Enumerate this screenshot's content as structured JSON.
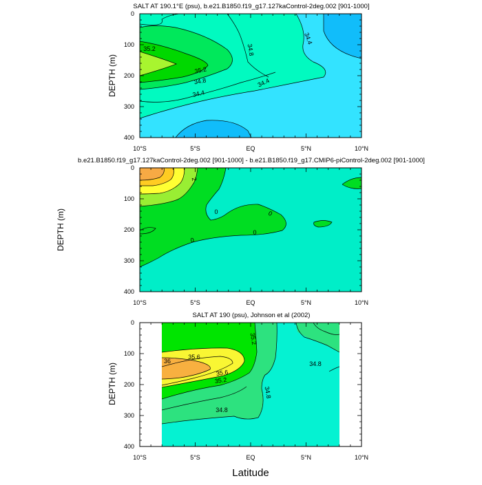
{
  "figure": {
    "xlabel": "Latitude"
  },
  "colors": {
    "c342": "#11bdfa",
    "c344": "#33e3ff",
    "c348": "#01fac0",
    "c352": "#00e85b",
    "c356": "#00d800",
    "c360": "#a8f52f",
    "d0": "#00eec8",
    "d02": "#00dd22",
    "d04": "#99ee33",
    "d06": "#ffff33",
    "d08": "#ffcc22",
    "d10": "#f7aa44",
    "j348": "#05f2d2",
    "j352": "#2de27f",
    "j356": "#00e500",
    "j360": "#f9f633",
    "j362": "#f8b040"
  },
  "chart_data": [
    {
      "type": "contour",
      "title": "SALT AT 190.1°E (psu), b.e21.B1850.f19_g17.127kaControl-2deg.002 [901-1000]",
      "xlabel": "",
      "ylabel": "DEPTH (m)",
      "xlim": [
        -10,
        10
      ],
      "ylim": [
        400,
        0
      ],
      "x_ticks": [
        "10°S",
        "5°S",
        "EQ",
        "5°N",
        "10°N"
      ],
      "y_ticks": [
        "0",
        "100",
        "200",
        "300",
        "400"
      ],
      "contour_labels": [
        "35.2",
        "35.2",
        "34.8",
        "34.8",
        "34.4",
        "34.4",
        "34.4"
      ],
      "levels": [
        34.2,
        34.4,
        34.8,
        35.2,
        35.6
      ]
    },
    {
      "type": "contour",
      "title": "b.e21.B1850.f19_g17.127kaControl-2deg.002 [901-1000] - b.e21.B1850.f19_g17.CMIP6-piControl-2deg.002 [901-1000]",
      "xlabel": "",
      "ylabel": "DEPTH (m)",
      "xlim": [
        -10,
        10
      ],
      "ylim": [
        400,
        0
      ],
      "x_ticks": [
        "10°S",
        "5°S",
        "EQ",
        "5°N",
        "10°N"
      ],
      "y_ticks": [
        "0",
        "100",
        "200",
        "300",
        "400"
      ],
      "contour_labels": [
        "2",
        "0",
        "0",
        "0",
        "0"
      ],
      "levels": [
        0,
        0.2,
        0.4,
        0.6,
        0.8
      ]
    },
    {
      "type": "contour",
      "title": "SALT AT 190 (psu), Johnson et al (2002)",
      "xlabel": "",
      "ylabel": "DEPTH (m)",
      "xlim": [
        -10,
        10
      ],
      "ylim": [
        400,
        0
      ],
      "x_ticks": [
        "10°S",
        "5°S",
        "EQ",
        "5°N",
        "10°N"
      ],
      "y_ticks": [
        "0",
        "100",
        "200",
        "300",
        "400"
      ],
      "contour_labels": [
        "35.2",
        "35.6",
        "36",
        "35.6",
        "35.2",
        "34.8",
        "34.8",
        "34.8"
      ],
      "levels": [
        34.8,
        35.2,
        35.6,
        36.0
      ],
      "data_x_range": [
        -8,
        8
      ]
    }
  ]
}
